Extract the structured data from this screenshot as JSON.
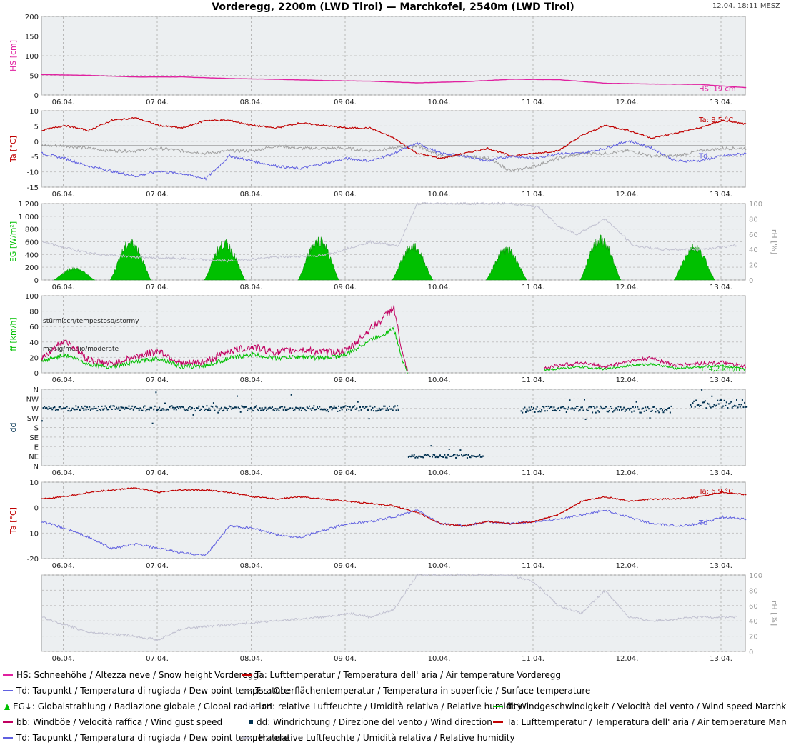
{
  "title": "Vorderegg, 2200m (LWD Tirol) — Marchkofel, 2540m (LWD Tirol)",
  "timestamp": "12.04. 18:11 MESZ",
  "colors": {
    "hs": "#e020a0",
    "ta": "#c00000",
    "td": "#6060e0",
    "tss": "#a0a0a0",
    "eg": "#00c000",
    "rh": "#c0c0d0",
    "ff": "#00c000",
    "bb": "#c00060",
    "dd": "#003050",
    "panel_bg": "#eceff1"
  },
  "chart_data": [
    {
      "id": "snow",
      "type": "line",
      "ylabel": "HS [cm]",
      "yticks": [
        "0",
        "50",
        "100",
        "150",
        "200"
      ],
      "ylim": [
        0,
        200
      ],
      "x": [
        0,
        0.5,
        1,
        1.5,
        2,
        2.5,
        3,
        3.5,
        4,
        4.5,
        5,
        5.5,
        6,
        6.5,
        7,
        7.5
      ],
      "series": [
        {
          "name": "HS",
          "color": "#e020a0",
          "values": [
            52,
            50,
            46,
            46,
            42,
            40,
            37,
            35,
            31,
            34,
            40,
            39,
            30,
            28,
            27,
            19
          ]
        }
      ],
      "annotations": [
        {
          "text": "HS: 19 cm",
          "color": "#e020a0"
        }
      ]
    },
    {
      "id": "temp_vorderegg",
      "type": "line",
      "ylabel": "Ta [°C]",
      "yticks": [
        "-15",
        "-10",
        "-5",
        "0",
        "5",
        "10"
      ],
      "ylim": [
        -16,
        14
      ],
      "x": [
        0,
        0.25,
        0.5,
        0.75,
        1,
        1.25,
        1.5,
        1.75,
        2,
        2.25,
        2.5,
        2.75,
        3,
        3.25,
        3.5,
        3.75,
        4,
        4.25,
        4.5,
        4.75,
        5,
        5.25,
        5.5,
        5.75,
        6,
        6.25,
        6.5,
        6.75,
        7,
        7.25,
        7.5
      ],
      "series": [
        {
          "name": "Ta",
          "color": "#c00000",
          "values": [
            6,
            8,
            6,
            10,
            11,
            8,
            7,
            10,
            10,
            8,
            7,
            9,
            8,
            7,
            7,
            3,
            -3,
            -5,
            -3,
            -1,
            -4,
            -3,
            -2,
            4,
            8,
            6,
            3,
            5,
            7,
            10,
            8.5
          ]
        },
        {
          "name": "Td",
          "color": "#6060e0",
          "values": [
            -3,
            -5,
            -8,
            -10,
            -12,
            -10,
            -11,
            -13,
            -4,
            -6,
            -8,
            -9,
            -7,
            -5,
            -6,
            -3,
            1,
            -3,
            -4,
            -6,
            -4,
            -5,
            -3,
            -3,
            -1,
            2,
            -1,
            -6,
            -6,
            -4,
            -3
          ]
        },
        {
          "name": "Tss",
          "color": "#a0a0a0",
          "values": [
            0,
            0,
            -1,
            -2,
            -2,
            -1,
            -2,
            -3,
            -2,
            -2,
            0,
            -1,
            -1,
            -1,
            -2,
            -1,
            0,
            -4,
            -4,
            -5,
            -10,
            -8,
            -5,
            -3,
            -3,
            -2,
            -4,
            -4,
            -2,
            -1,
            -1
          ]
        }
      ],
      "annotations": [
        {
          "text": "Ta: 8,5 °C",
          "color": "#c00000"
        },
        {
          "text": "Td",
          "color": "#6060e0"
        }
      ]
    },
    {
      "id": "radiation",
      "type": "area",
      "ylabel": "EG [W/m²]",
      "yticks": [
        "0",
        "200",
        "400",
        "600",
        "800",
        "1 000",
        "1 200"
      ],
      "ylim": [
        0,
        1200
      ],
      "y2label": "rH [%]",
      "y2ticks": [
        "0",
        "20",
        "40",
        "60",
        "80",
        "100"
      ],
      "y2lim": [
        0,
        100
      ],
      "daily_peaks": [
        {
          "day": 0.0,
          "peak": 180
        },
        {
          "day": 0.6,
          "peak": 580
        },
        {
          "day": 1.6,
          "peak": 560
        },
        {
          "day": 2.6,
          "peak": 620
        },
        {
          "day": 3.6,
          "peak": 520
        },
        {
          "day": 4.6,
          "peak": 470
        },
        {
          "day": 5.6,
          "peak": 620
        },
        {
          "day": 6.6,
          "peak": 510
        }
      ],
      "rh": {
        "name": "rH",
        "color": "#c0c0d0",
        "x": [
          0,
          0.5,
          1,
          1.5,
          2,
          2.5,
          3,
          3.5,
          3.8,
          4,
          4.5,
          5,
          5.3,
          5.5,
          5.7,
          6,
          6.3,
          6.6,
          7,
          7.4
        ],
        "values": [
          50,
          35,
          30,
          28,
          25,
          30,
          32,
          50,
          45,
          100,
          100,
          100,
          95,
          70,
          60,
          80,
          45,
          40,
          40,
          45
        ]
      }
    },
    {
      "id": "wind_speed",
      "type": "line",
      "ylabel": "ff [km/h]",
      "yticks": [
        "0",
        "20",
        "40",
        "60",
        "80",
        "100"
      ],
      "ylim": [
        0,
        105
      ],
      "x": [
        0,
        0.25,
        0.5,
        0.75,
        1,
        1.25,
        1.5,
        1.75,
        2,
        2.25,
        2.5,
        2.75,
        3,
        3.25,
        3.5,
        3.6,
        3.75,
        3.85,
        3.9
      ],
      "series": [
        {
          "name": "ff",
          "color": "#00c000",
          "values": [
            15,
            25,
            12,
            8,
            15,
            20,
            8,
            10,
            20,
            25,
            20,
            22,
            20,
            25,
            45,
            50,
            60,
            15,
            0
          ]
        },
        {
          "name": "bb",
          "color": "#c00060",
          "values": [
            20,
            45,
            18,
            12,
            22,
            30,
            12,
            15,
            30,
            35,
            28,
            32,
            28,
            30,
            60,
            70,
            90,
            20,
            0
          ]
        }
      ],
      "late_x": [
        5.35,
        5.5,
        5.75,
        6,
        6.25,
        6.5,
        6.75,
        7,
        7.25,
        7.5
      ],
      "late_ff": [
        3,
        6,
        8,
        5,
        10,
        12,
        6,
        8,
        10,
        4.2
      ],
      "late_bb": [
        6,
        10,
        14,
        8,
        16,
        20,
        10,
        13,
        14,
        8
      ],
      "bands": [
        "stürmisch/tempestoso/stormy",
        "mäßig/medio/moderate"
      ],
      "annotations": [
        {
          "text": "ff: 4,2 km/h",
          "color": "#00c000"
        }
      ]
    },
    {
      "id": "wind_dir",
      "type": "scatter",
      "ylabel": "dd",
      "yticks": [
        "N",
        "NE",
        "E",
        "SE",
        "S",
        "SW",
        "W",
        "NW",
        "N"
      ],
      "ylim": [
        0,
        360
      ],
      "clusters": [
        {
          "from": 0,
          "to": 3.8,
          "deg": 270,
          "spread": 12
        },
        {
          "from": 3.9,
          "to": 4.7,
          "deg": 45,
          "spread": 8
        },
        {
          "from": 5.1,
          "to": 6.7,
          "deg": 265,
          "spread": 15
        },
        {
          "from": 6.9,
          "to": 7.5,
          "deg": 290,
          "spread": 20
        }
      ],
      "color": "#003050"
    },
    {
      "id": "temp_marchkofel",
      "type": "line",
      "ylabel": "Ta [°C]",
      "yticks": [
        "-20",
        "-10",
        "0",
        "10"
      ],
      "ylim": [
        -22,
        13
      ],
      "x": [
        0,
        0.25,
        0.5,
        0.75,
        1,
        1.25,
        1.5,
        1.75,
        2,
        2.25,
        2.5,
        2.75,
        3,
        3.25,
        3.5,
        3.75,
        4,
        4.25,
        4.5,
        4.75,
        5,
        5.25,
        5.5,
        5.75,
        6,
        6.25,
        6.5,
        6.75,
        7,
        7.25,
        7.5
      ],
      "series": [
        {
          "name": "Ta",
          "color": "#c00000",
          "values": [
            5,
            6,
            8,
            9,
            10,
            8,
            9,
            9,
            8,
            6,
            5,
            6,
            5,
            4,
            3,
            2,
            -1,
            -6,
            -7,
            -5,
            -6,
            -5,
            -2,
            4,
            6,
            4,
            5,
            5,
            6,
            8,
            6.9
          ]
        },
        {
          "name": "Td",
          "color": "#6060e0",
          "values": [
            -5,
            -8,
            -12,
            -17,
            -15,
            -17,
            -19,
            -20,
            -7,
            -8,
            -11,
            -12,
            -9,
            -6,
            -5,
            -3,
            0,
            -6,
            -7,
            -5,
            -6,
            -5,
            -4,
            -2,
            0,
            -3,
            -6,
            -7,
            -6,
            -3,
            -4
          ]
        }
      ],
      "annotations": [
        {
          "text": "Ta: 6,9 °C",
          "color": "#c00000"
        },
        {
          "text": "Td",
          "color": "#6060e0"
        }
      ]
    },
    {
      "id": "rh_marchkofel",
      "type": "line",
      "y2label": "rH [%]",
      "y2ticks": [
        "0",
        "20",
        "40",
        "60",
        "80",
        "100"
      ],
      "y2lim": [
        0,
        100
      ],
      "x": [
        0,
        0.5,
        1,
        1.25,
        1.5,
        2,
        2.5,
        3,
        3.3,
        3.5,
        3.75,
        4,
        4.5,
        5,
        5.25,
        5.5,
        5.75,
        6,
        6.25,
        6.5,
        7,
        7.4
      ],
      "series": [
        {
          "name": "rH",
          "color": "#c0c0d0",
          "values": [
            45,
            25,
            20,
            15,
            30,
            35,
            40,
            45,
            50,
            45,
            55,
            100,
            100,
            100,
            90,
            60,
            50,
            80,
            45,
            40,
            45,
            45
          ]
        }
      ]
    }
  ],
  "x_ticks": [
    "06.04.",
    "07.04.",
    "08.04.",
    "09.04.",
    "10.04.",
    "11.04.",
    "12.04.",
    "13.04."
  ],
  "legend": [
    [
      {
        "type": "line",
        "color": "#e020a0",
        "text": "HS: Schneehöhe / Altezza neve / Snow height  Vorderegg"
      },
      {
        "type": "line",
        "color": "#c00000",
        "text": "Ta: Lufttemperatur / Temperatura dell' aria / Air temperature  Vorderegg"
      }
    ],
    [
      {
        "type": "line",
        "color": "#6060e0",
        "text": "Td: Taupunkt / Temperatura di rugiada / Dew point temperature"
      },
      {
        "type": "line",
        "color": "#a0a0a0",
        "text": "Tss: Oberflächentemperatur / Temperatura in superficie / Surface temperature"
      }
    ],
    [
      {
        "type": "tri",
        "color": "#00c000",
        "text": "EG↓: Globalstrahlung / Radiazione globale / Global radiation"
      },
      {
        "type": "line",
        "color": "#c0c0d0",
        "text": "rH: relative Luftfeuchte / Umidità relativa / Relative humidity"
      },
      {
        "type": "line",
        "color": "#00c000",
        "text": "ff: Windgeschwindigkeit / Velocità del vento / Wind speed  Marchkofel"
      }
    ],
    [
      {
        "type": "line",
        "color": "#c00060",
        "text": "bb: Windböe / Velocità raffica / Wind gust speed"
      },
      {
        "type": "sq",
        "color": "#003050",
        "text": "dd: Windrichtung / Direzione del vento / Wind direction"
      },
      {
        "type": "line",
        "color": "#c00000",
        "text": "Ta: Lufttemperatur / Temperatura dell' aria / Air temperature  Marchkofel"
      }
    ],
    [
      {
        "type": "line",
        "color": "#6060e0",
        "text": "Td: Taupunkt / Temperatura di rugiada / Dew point temperature"
      },
      {
        "type": "line",
        "color": "#c0c0d0",
        "text": "rH: relative Luftfeuchte / Umidità relativa / Relative humidity"
      }
    ]
  ]
}
